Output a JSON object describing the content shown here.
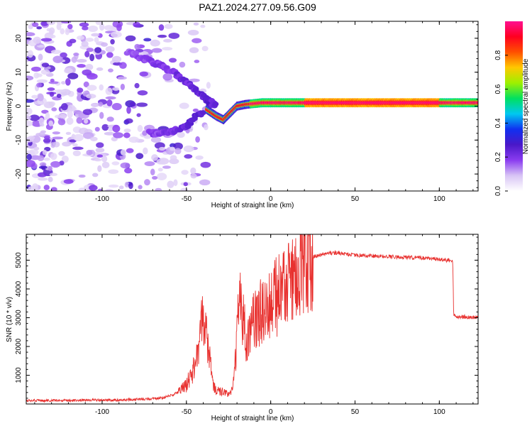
{
  "figure_title": "PAZ1.2024.277.09.56.G09",
  "colors": {
    "snr_line": "#e8312f",
    "axes": "#000000",
    "colormap": [
      "#ffffff",
      "#d8c4f5",
      "#8a3cf0",
      "#4a18c8",
      "#1030f0",
      "#00c8f0",
      "#00e060",
      "#9ef000",
      "#ffc800",
      "#ff5000",
      "#ff0020",
      "#ff1090"
    ]
  },
  "chart_data": [
    {
      "type": "heatmap",
      "title": "PAZ1.2024.277.09.56.G09",
      "xlabel": "Height of straight line (km)",
      "ylabel": "Frequency (Hz)",
      "xlim": [
        -145,
        123
      ],
      "ylim": [
        -25,
        25
      ],
      "xticks": [
        -100,
        -50,
        0,
        50,
        100
      ],
      "yticks": [
        -20,
        -10,
        0,
        10,
        20
      ],
      "colorbar": {
        "label": "Normalized spectral amplitude",
        "range": [
          0,
          1
        ],
        "ticks": [
          "0.0",
          "0.2",
          "0.4",
          "0.6",
          "0.8"
        ]
      },
      "features": {
        "noise_region_x": [
          -145,
          -35
        ],
        "upper_branch": [
          [
            -85,
            16
          ],
          [
            -75,
            14
          ],
          [
            -65,
            12
          ],
          [
            -55,
            9
          ],
          [
            -45,
            5
          ],
          [
            -38,
            2
          ],
          [
            -33,
            0
          ]
        ],
        "lower_branch": [
          [
            -72,
            -8
          ],
          [
            -65,
            -8
          ],
          [
            -58,
            -7.5
          ],
          [
            -50,
            -6
          ],
          [
            -45,
            -3
          ],
          [
            -40,
            -2
          ]
        ],
        "merge_trace": [
          [
            -38,
            -1
          ],
          [
            -32,
            -3
          ],
          [
            -28,
            -4
          ],
          [
            -24,
            -2
          ],
          [
            -20,
            0
          ],
          [
            -15,
            0.5
          ],
          [
            -5,
            1
          ],
          [
            0,
            1
          ],
          [
            50,
            1
          ],
          [
            123,
            1
          ]
        ],
        "peak_band_x": [
          20,
          100
        ]
      }
    },
    {
      "type": "line",
      "xlabel": "Height of straight line (km)",
      "ylabel": "SNR (10 * v/v)",
      "xlim": [
        -145,
        123
      ],
      "ylim": [
        0,
        5900
      ],
      "xticks": [
        -100,
        -50,
        0,
        50,
        100
      ],
      "yticks": [
        1000,
        2000,
        3000,
        4000,
        5000
      ],
      "series": [
        {
          "x": [
            -145,
            -130,
            -110,
            -90,
            -75,
            -65,
            -60,
            -55,
            -50,
            -45,
            -42,
            -40,
            -38,
            -36,
            -35,
            -33,
            -30,
            -27,
            -25,
            -22,
            -20,
            -19,
            -18,
            -17,
            -16,
            -15,
            -14,
            -13,
            -12,
            -10,
            -7,
            -5,
            -2,
            0,
            2,
            5,
            7,
            9,
            10,
            11,
            13,
            15,
            18,
            20,
            23,
            25,
            28,
            30,
            35,
            40,
            45,
            50,
            60,
            70,
            80,
            90,
            100,
            105,
            107,
            108,
            108.5,
            110,
            115,
            123
          ],
          "y": [
            120,
            120,
            130,
            140,
            170,
            210,
            280,
            400,
            650,
            1300,
            2300,
            3000,
            2400,
            1600,
            900,
            500,
            450,
            380,
            300,
            700,
            2400,
            4000,
            3400,
            2800,
            3300,
            2500,
            1600,
            2600,
            2300,
            2900,
            3000,
            3300,
            3400,
            3500,
            3650,
            3800,
            3900,
            4100,
            4400,
            4000,
            4200,
            4500,
            4700,
            4850,
            5000,
            5100,
            5180,
            5200,
            5250,
            5250,
            5200,
            5180,
            5150,
            5120,
            5100,
            5080,
            5030,
            5000,
            4980,
            4950,
            3100,
            3050,
            3030,
            3020
          ]
        }
      ]
    }
  ]
}
